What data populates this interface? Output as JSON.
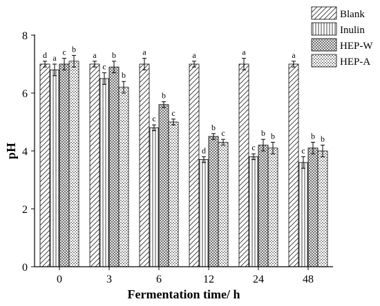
{
  "chart_data": {
    "type": "bar",
    "xlabel": "Fermentation time/ h",
    "ylabel": "pH",
    "ylim": [
      0,
      8
    ],
    "yticks": [
      "0",
      "2",
      "4",
      "6",
      "8"
    ],
    "categories": [
      "0",
      "3",
      "6",
      "12",
      "24",
      "48"
    ],
    "legend_position": "top-right",
    "series": [
      {
        "name": "Blank",
        "pattern": "diagonal-hatch",
        "values": [
          7.0,
          7.0,
          7.0,
          7.0,
          7.0,
          7.0
        ],
        "errors": [
          0.1,
          0.1,
          0.2,
          0.1,
          0.2,
          0.1
        ],
        "letters": [
          "d",
          "a",
          "a",
          "a",
          "a",
          "a"
        ]
      },
      {
        "name": "Inulin",
        "pattern": "vertical-lines",
        "values": [
          6.8,
          6.5,
          4.8,
          3.7,
          3.8,
          3.6
        ],
        "errors": [
          0.2,
          0.2,
          0.1,
          0.1,
          0.1,
          0.2
        ],
        "letters": [
          "a",
          "c",
          "c",
          "d",
          "c",
          "c"
        ]
      },
      {
        "name": "HEP-W",
        "pattern": "crosshatch",
        "values": [
          7.0,
          6.9,
          5.6,
          4.5,
          4.2,
          4.1
        ],
        "errors": [
          0.2,
          0.2,
          0.1,
          0.1,
          0.2,
          0.2
        ],
        "letters": [
          "c",
          "b",
          "b",
          "b",
          "b",
          "b"
        ]
      },
      {
        "name": "HEP-A",
        "pattern": "dotted",
        "values": [
          7.1,
          6.2,
          5.0,
          4.3,
          4.1,
          4.0
        ],
        "errors": [
          0.2,
          0.2,
          0.1,
          0.1,
          0.2,
          0.2
        ],
        "letters": [
          "b",
          "b",
          "c",
          "c",
          "b",
          "b"
        ]
      }
    ]
  }
}
